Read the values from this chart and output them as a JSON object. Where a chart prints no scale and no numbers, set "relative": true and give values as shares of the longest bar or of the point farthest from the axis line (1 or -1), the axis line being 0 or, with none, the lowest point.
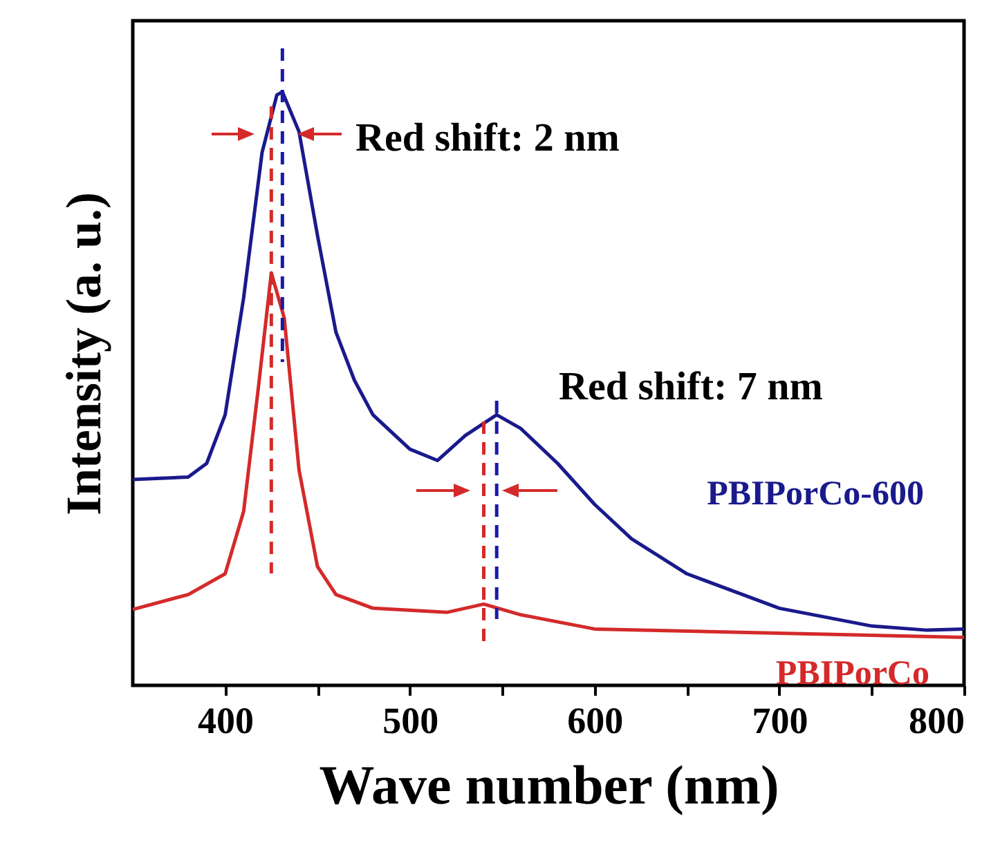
{
  "chart_data": {
    "type": "line",
    "xlabel": "Wave number (nm)",
    "ylabel": "Intensity (a. u.)",
    "relative": true,
    "grid": false,
    "line_style": "solid",
    "marker": "none",
    "xlim": [
      350,
      800
    ],
    "xticks": [
      400,
      {
        "value": 450,
        "label": null
      },
      500,
      {
        "value": 550,
        "label": null
      },
      600,
      {
        "value": 650,
        "label": null
      },
      700,
      {
        "value": 750,
        "label": null
      },
      800
    ],
    "series": [
      {
        "name": "PBIPorCo-600",
        "color": "#1a1a8c",
        "x": [
          350,
          380,
          390,
          400,
          410,
          420,
          428,
          431,
          440,
          450,
          460,
          470,
          480,
          500,
          515,
          530,
          547,
          560,
          580,
          600,
          620,
          650,
          700,
          750,
          780,
          800
        ],
        "values": [
          0.347,
          0.351,
          0.374,
          0.456,
          0.653,
          0.898,
          0.995,
          1.0,
          0.933,
          0.758,
          0.595,
          0.514,
          0.456,
          0.398,
          0.379,
          0.421,
          0.456,
          0.433,
          0.374,
          0.305,
          0.247,
          0.188,
          0.13,
          0.1,
          0.093,
          0.095
        ]
      },
      {
        "name": "PBIPorCo",
        "color": "#d42a2a",
        "x": [
          350,
          380,
          400,
          410,
          418,
          425,
          432,
          440,
          450,
          460,
          480,
          520,
          540,
          560,
          600,
          700,
          800
        ],
        "values": [
          0.128,
          0.153,
          0.188,
          0.293,
          0.502,
          0.695,
          0.619,
          0.363,
          0.2,
          0.153,
          0.13,
          0.123,
          0.137,
          0.119,
          0.095,
          0.088,
          0.081
        ]
      }
    ],
    "ref_lines": [
      {
        "axis": "x",
        "value": 425,
        "color": "#d42a2a",
        "line_style": "dashed"
      },
      {
        "axis": "x",
        "value": 431,
        "color": "#1a1aa8",
        "line_style": "dashed"
      },
      {
        "axis": "x",
        "value": 540,
        "color": "#d42a2a",
        "line_style": "dashed"
      },
      {
        "axis": "x",
        "value": 547,
        "color": "#1a1aa8",
        "line_style": "dashed"
      }
    ],
    "annotations": [
      "Red shift: 2 nm",
      "Red shift: 7 nm"
    ]
  }
}
